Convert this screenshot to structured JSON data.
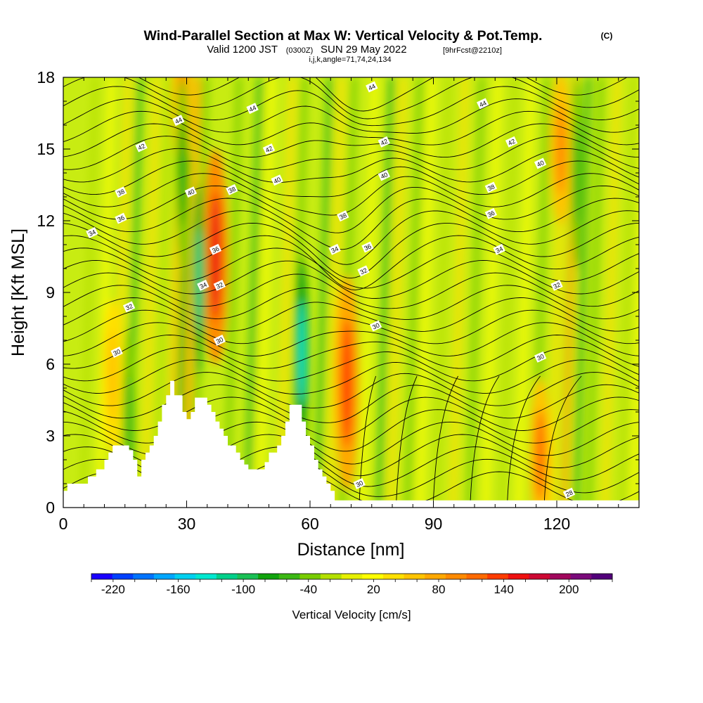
{
  "chart_data": {
    "type": "heatmap",
    "title_main": "Wind-Parallel Section at Max W: Vertical Velocity & Pot.Temp.",
    "title_mark": "(C)",
    "subtitle_a": "Valid 1200 JST",
    "subtitle_b": "(0300Z)",
    "subtitle_c": "SUN 29 May 2022",
    "subtitle_d": "[9hrFcst@2210z]",
    "subtitle_line2": "i,j,k,angle=71,74,24,134",
    "xlabel": "Distance [nm]",
    "ylabel": "Height [Kft MSL]",
    "xlim": [
      0,
      140
    ],
    "ylim": [
      0,
      18
    ],
    "x_ticks": [
      0,
      30,
      60,
      90,
      120
    ],
    "y_ticks": [
      0,
      3,
      6,
      9,
      12,
      15,
      18
    ],
    "colorbar": {
      "label": "Vertical Velocity [cm/s]",
      "range": [
        -240,
        240
      ],
      "ticks": [
        -220,
        -160,
        -100,
        -40,
        20,
        80,
        140,
        200
      ],
      "colors": [
        "#1a00ff",
        "#0040ff",
        "#0073ff",
        "#00a6ff",
        "#00d0f0",
        "#00e8d0",
        "#00d08a",
        "#1ac055",
        "#11a30d",
        "#3cb814",
        "#78cc00",
        "#b4e000",
        "#e6f000",
        "#ffff00",
        "#ffe000",
        "#ffc400",
        "#ffa800",
        "#ff8a00",
        "#ff6a00",
        "#ff3c00",
        "#ee1010",
        "#cc0833",
        "#a0075c",
        "#7a0a7a",
        "#52007a"
      ]
    },
    "theta_contours": {
      "units": "K-310 label",
      "levels": [
        {
          "label": "28",
          "x": 123,
          "y": 0.6
        },
        {
          "label": "30",
          "x": 13,
          "y": 6.5
        },
        {
          "label": "30",
          "x": 38,
          "y": 7.0
        },
        {
          "label": "30",
          "x": 76,
          "y": 7.6
        },
        {
          "label": "30",
          "x": 116,
          "y": 6.3
        },
        {
          "label": "30",
          "x": 72,
          "y": 1.0
        },
        {
          "label": "32",
          "x": 16,
          "y": 8.4
        },
        {
          "label": "32",
          "x": 38,
          "y": 9.3
        },
        {
          "label": "32",
          "x": 73,
          "y": 9.9
        },
        {
          "label": "32",
          "x": 120,
          "y": 9.3
        },
        {
          "label": "34",
          "x": 7,
          "y": 11.5
        },
        {
          "label": "34",
          "x": 34,
          "y": 9.3
        },
        {
          "label": "34",
          "x": 66,
          "y": 10.8
        },
        {
          "label": "34",
          "x": 106,
          "y": 10.8
        },
        {
          "label": "36",
          "x": 14,
          "y": 12.1
        },
        {
          "label": "36",
          "x": 37,
          "y": 10.8
        },
        {
          "label": "36",
          "x": 74,
          "y": 10.9
        },
        {
          "label": "36",
          "x": 104,
          "y": 12.3
        },
        {
          "label": "38",
          "x": 14,
          "y": 13.2
        },
        {
          "label": "38",
          "x": 41,
          "y": 13.3
        },
        {
          "label": "38",
          "x": 68,
          "y": 12.2
        },
        {
          "label": "38",
          "x": 104,
          "y": 13.4
        },
        {
          "label": "40",
          "x": 31,
          "y": 13.2
        },
        {
          "label": "40",
          "x": 52,
          "y": 13.7
        },
        {
          "label": "40",
          "x": 78,
          "y": 13.9
        },
        {
          "label": "40",
          "x": 116,
          "y": 14.4
        },
        {
          "label": "42",
          "x": 19,
          "y": 15.1
        },
        {
          "label": "42",
          "x": 50,
          "y": 15.0
        },
        {
          "label": "42",
          "x": 78,
          "y": 15.3
        },
        {
          "label": "42",
          "x": 109,
          "y": 15.3
        },
        {
          "label": "44",
          "x": 28,
          "y": 16.2
        },
        {
          "label": "44",
          "x": 46,
          "y": 16.7
        },
        {
          "label": "44",
          "x": 75,
          "y": 17.6
        },
        {
          "label": "44",
          "x": 102,
          "y": 16.9
        }
      ]
    },
    "terrain_profile": [
      [
        0,
        0
      ],
      [
        0,
        0.7
      ],
      [
        1,
        0.7
      ],
      [
        1,
        1.0
      ],
      [
        6,
        1.0
      ],
      [
        6,
        1.3
      ],
      [
        8,
        1.3
      ],
      [
        8,
        1.6
      ],
      [
        10,
        1.6
      ],
      [
        10,
        2.0
      ],
      [
        11,
        2.0
      ],
      [
        11,
        2.3
      ],
      [
        12,
        2.3
      ],
      [
        12,
        2.6
      ],
      [
        16,
        2.6
      ],
      [
        16,
        2.4
      ],
      [
        17,
        2.4
      ],
      [
        17,
        2.0
      ],
      [
        18,
        2.0
      ],
      [
        18,
        1.3
      ],
      [
        19,
        1.3
      ],
      [
        19,
        2.0
      ],
      [
        20,
        2.0
      ],
      [
        20,
        2.3
      ],
      [
        21,
        2.3
      ],
      [
        21,
        2.6
      ],
      [
        22,
        2.6
      ],
      [
        22,
        3.0
      ],
      [
        23,
        3.0
      ],
      [
        23,
        3.6
      ],
      [
        24,
        3.6
      ],
      [
        24,
        4.3
      ],
      [
        25,
        4.3
      ],
      [
        25,
        4.7
      ],
      [
        26,
        4.7
      ],
      [
        26,
        5.3
      ],
      [
        27,
        5.3
      ],
      [
        27,
        4.7
      ],
      [
        29,
        4.7
      ],
      [
        29,
        4.0
      ],
      [
        30,
        4.0
      ],
      [
        30,
        3.7
      ],
      [
        31,
        3.7
      ],
      [
        31,
        4.0
      ],
      [
        32,
        4.0
      ],
      [
        32,
        4.6
      ],
      [
        35,
        4.6
      ],
      [
        35,
        4.3
      ],
      [
        36,
        4.3
      ],
      [
        36,
        4.0
      ],
      [
        37,
        4.0
      ],
      [
        37,
        3.6
      ],
      [
        38,
        3.6
      ],
      [
        38,
        3.3
      ],
      [
        39,
        3.3
      ],
      [
        39,
        3.0
      ],
      [
        40,
        3.0
      ],
      [
        40,
        2.6
      ],
      [
        42,
        2.6
      ],
      [
        42,
        2.3
      ],
      [
        43,
        2.3
      ],
      [
        43,
        2.0
      ],
      [
        44,
        2.0
      ],
      [
        44,
        1.8
      ],
      [
        45,
        1.8
      ],
      [
        45,
        1.6
      ],
      [
        49,
        1.6
      ],
      [
        49,
        1.9
      ],
      [
        50,
        1.9
      ],
      [
        50,
        2.3
      ],
      [
        52,
        2.3
      ],
      [
        52,
        2.6
      ],
      [
        53,
        2.6
      ],
      [
        53,
        3.0
      ],
      [
        54,
        3.0
      ],
      [
        54,
        3.6
      ],
      [
        55,
        3.6
      ],
      [
        55,
        4.3
      ],
      [
        58,
        4.3
      ],
      [
        58,
        3.6
      ],
      [
        59,
        3.6
      ],
      [
        59,
        3.0
      ],
      [
        60,
        3.0
      ],
      [
        60,
        2.6
      ],
      [
        61,
        2.6
      ],
      [
        61,
        2.0
      ],
      [
        62,
        2.0
      ],
      [
        62,
        1.6
      ],
      [
        63,
        1.6
      ],
      [
        63,
        1.3
      ],
      [
        64,
        1.3
      ],
      [
        64,
        1.0
      ],
      [
        65,
        1.0
      ],
      [
        65,
        0.7
      ],
      [
        66,
        0.7
      ],
      [
        66,
        0.3
      ],
      [
        140,
        0.3
      ],
      [
        140,
        0
      ]
    ],
    "updrafts": [
      {
        "x": 37,
        "y": 10.5,
        "w_cm_s": 160
      },
      {
        "x": 69,
        "y": 5.2,
        "w_cm_s": 130
      },
      {
        "x": 29,
        "y": 17.0,
        "w_cm_s": 90
      },
      {
        "x": 116,
        "y": 2.2,
        "w_cm_s": 110
      },
      {
        "x": 121,
        "y": 15.0,
        "w_cm_s": 100
      },
      {
        "x": 12,
        "y": 5.5,
        "w_cm_s": 60
      }
    ],
    "downdrafts": [
      {
        "x": 58,
        "y": 6.5,
        "w_cm_s": -130
      },
      {
        "x": 33,
        "y": 9.5,
        "w_cm_s": -110
      },
      {
        "x": 29,
        "y": 14.0,
        "w_cm_s": -80
      },
      {
        "x": 16,
        "y": 3.5,
        "w_cm_s": -60
      },
      {
        "x": 125,
        "y": 14.0,
        "w_cm_s": -60
      }
    ]
  }
}
